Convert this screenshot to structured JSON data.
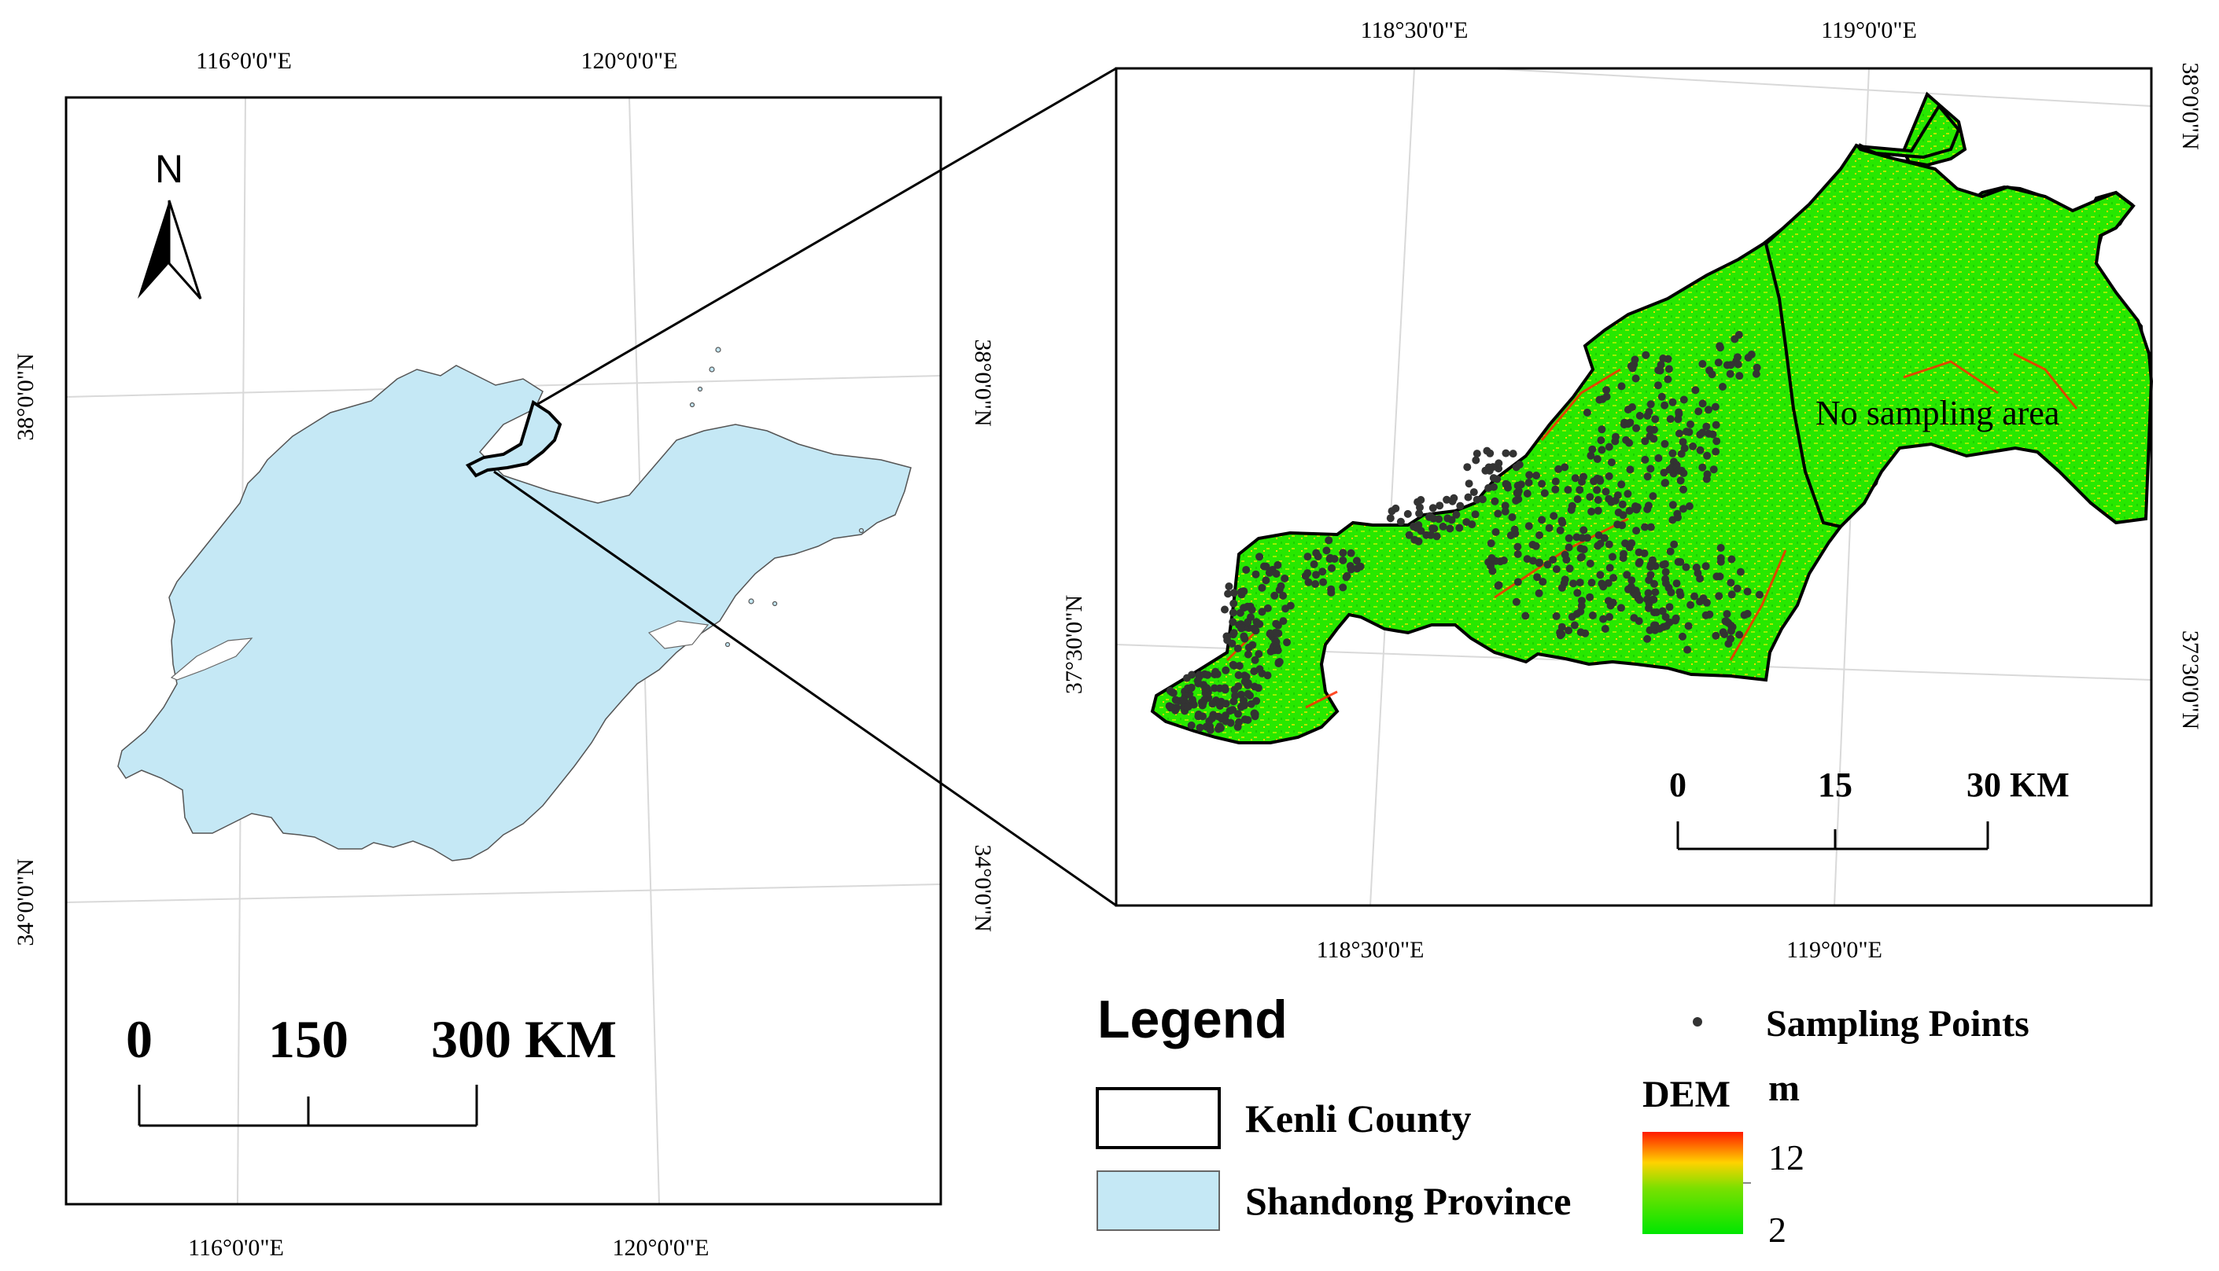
{
  "left_map": {
    "top_labels": [
      "116°0'0\"E",
      "120°0'0\"E"
    ],
    "bottom_labels": [
      "116°0'0\"E",
      "120°0'0\"E"
    ],
    "left_labels": [
      "38°0'0\"N",
      "34°0'0\"N"
    ],
    "right_labels": [
      "38°0'0\"N",
      "34°0'0\"N"
    ],
    "north_label": "N",
    "scale": {
      "ticks": [
        "0",
        "150",
        "300 KM"
      ]
    }
  },
  "right_map": {
    "top_labels": [
      "118°30'0\"E",
      "119°0'0\"E"
    ],
    "bottom_labels": [
      "118°30'0\"E",
      "119°0'0\"E"
    ],
    "left_labels": [
      "37°30'0\"N"
    ],
    "right_labels": [
      "38°0'0\"N",
      "37°30'0\"N"
    ],
    "annotation": "No sampling area",
    "scale": {
      "ticks": [
        "0",
        "15",
        "30 KM"
      ]
    }
  },
  "legend": {
    "title": "Legend",
    "items": [
      {
        "label": "Kenli County",
        "swatch": "#ffffff"
      },
      {
        "label": "Shandong Province",
        "swatch": "#c5e8f5"
      }
    ],
    "points_label": "Sampling Points",
    "dem": {
      "title": "DEM",
      "unit": "m",
      "max": "12",
      "min": "2"
    }
  },
  "colors": {
    "province_fill": "#c5e8f5",
    "dem_low": "#00e600",
    "dem_high": "#ff2000",
    "point": "#333333"
  }
}
